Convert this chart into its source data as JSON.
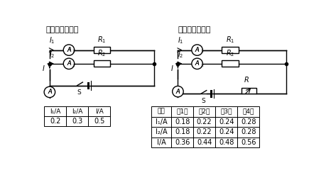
{
  "title_left": "丁丁的实验记录",
  "title_right": "冬冬的实验记录",
  "table1_headers": [
    "I₁/A",
    "I₂/A",
    "I/A"
  ],
  "table1_data": [
    [
      "0.2",
      "0.3",
      "0.5"
    ]
  ],
  "table2_headers": [
    "电流",
    "第1次",
    "第2次",
    "第3次",
    "第4次"
  ],
  "table2_data": [
    [
      "I₁/A",
      "0.18",
      "0.22",
      "0.24",
      "0.28"
    ],
    [
      "I₂/A",
      "0.18",
      "0.22",
      "0.24",
      "0.28"
    ],
    [
      "I/A",
      "0.36",
      "0.44",
      "0.48",
      "0.56"
    ]
  ],
  "bg_color": "#ffffff",
  "line_color": "#000000"
}
